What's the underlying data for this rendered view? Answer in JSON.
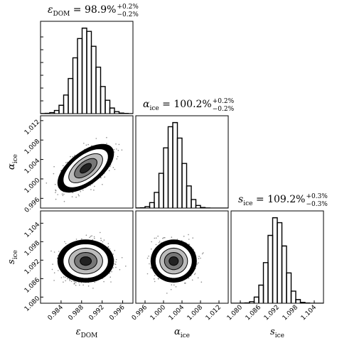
{
  "chart_data": [
    {
      "type": "histogram",
      "title": {
        "symbol": "ε",
        "sub": "DOM",
        "value": " = 98.9%",
        "upper": "+0.2%",
        "lower": "−0.2%"
      },
      "bins": [
        0.98,
        0.9809,
        0.9818,
        0.9827,
        0.9836,
        0.9845,
        0.9854,
        0.9863,
        0.9872,
        0.9881,
        0.989,
        0.9899,
        0.9908,
        0.9917,
        0.9926,
        0.9935,
        0.9944,
        0.9953,
        0.9962,
        0.9971,
        0.998
      ],
      "counts": [
        1,
        3,
        12,
        37,
        97,
        216,
        408,
        649,
        873,
        994,
        956,
        783,
        540,
        315,
        155,
        65,
        23,
        7,
        2,
        0
      ],
      "xlim": [
        0.98,
        0.998
      ],
      "color": "#000000"
    },
    {
      "type": "density",
      "x_mean": 0.9888,
      "x_sd": 0.0022,
      "y_mean": 1.0022,
      "y_sd": 0.002,
      "rho": 0.6,
      "xlim": [
        0.98,
        0.998
      ],
      "ylim": [
        0.994,
        1.013
      ],
      "yticks": [
        0.996,
        {
          "value": 1,
          "label": "1.000"
        },
        1.004,
        1.008,
        1.012
      ],
      "ylabel": {
        "symbol": "α",
        "sub": "ice"
      }
    },
    {
      "type": "histogram",
      "title": {
        "symbol": "α",
        "sub": "ice",
        "value": " = 100.2%",
        "upper": "+0.2%",
        "lower": "−0.2%"
      },
      "bins": [
        0.994,
        0.995,
        0.996,
        0.997,
        0.998,
        0.999,
        1,
        1.001,
        1.002,
        1.003,
        1.004,
        1.005,
        1.006,
        1.007,
        1.008,
        1.009,
        1.01,
        1.011,
        1.012,
        1.013,
        1.014
      ],
      "counts": [
        1,
        4,
        17,
        63,
        181,
        402,
        697,
        941,
        989,
        810,
        516,
        256,
        99,
        30,
        7,
        1,
        0,
        0,
        0,
        0
      ],
      "xlim": [
        0.994,
        1.014
      ],
      "color": "#000000"
    },
    {
      "type": "density",
      "x_mean": 0.9888,
      "x_sd": 0.0022,
      "y_mean": 1.0917,
      "y_sd": 0.0028,
      "rho": 0,
      "xlim": [
        0.98,
        0.998
      ],
      "ylim": [
        1.078,
        1.108
      ],
      "xticks": [
        0.984,
        0.988,
        0.992,
        0.996
      ],
      "yticks": [
        {
          "value": 1.08,
          "label": "1.080"
        },
        1.086,
        1.092,
        1.098,
        1.104
      ],
      "xlabel": {
        "symbol": "ε",
        "sub": "DOM"
      },
      "ylabel": {
        "symbol": "s",
        "sub": "ice"
      }
    },
    {
      "type": "density",
      "x_mean": 1.0022,
      "x_sd": 0.002,
      "y_mean": 1.0917,
      "y_sd": 0.0028,
      "rho": 0,
      "xlim": [
        0.994,
        1.014
      ],
      "ylim": [
        1.078,
        1.108
      ],
      "xticks": [
        0.996,
        {
          "value": 1,
          "label": "1.000"
        },
        1.004,
        1.008,
        1.012
      ],
      "xlabel": {
        "symbol": "α",
        "sub": "ice"
      }
    },
    {
      "type": "histogram",
      "title": {
        "symbol": "s",
        "sub": "ice",
        "value": " = 109.2%",
        "upper": "+0.3%",
        "lower": "−0.3%"
      },
      "bins": [
        1.077,
        1.0785,
        1.08,
        1.0815,
        1.083,
        1.0845,
        1.086,
        1.0875,
        1.089,
        1.0905,
        1.092,
        1.0935,
        1.095,
        1.0965,
        1.098,
        1.0995,
        1.101,
        1.1025,
        1.104,
        1.1055,
        1.107
      ],
      "counts": [
        0,
        0,
        1,
        3,
        18,
        71,
        209,
        469,
        783,
        987,
        930,
        661,
        350,
        140,
        42,
        10,
        2,
        0,
        0,
        0
      ],
      "xlim": [
        1.077,
        1.107
      ],
      "xticks": [
        {
          "value": 1.08,
          "label": "1.080"
        },
        1.086,
        1.092,
        1.098,
        1.104
      ],
      "xlabel": {
        "symbol": "s",
        "sub": "ice"
      },
      "color": "#000000"
    }
  ]
}
